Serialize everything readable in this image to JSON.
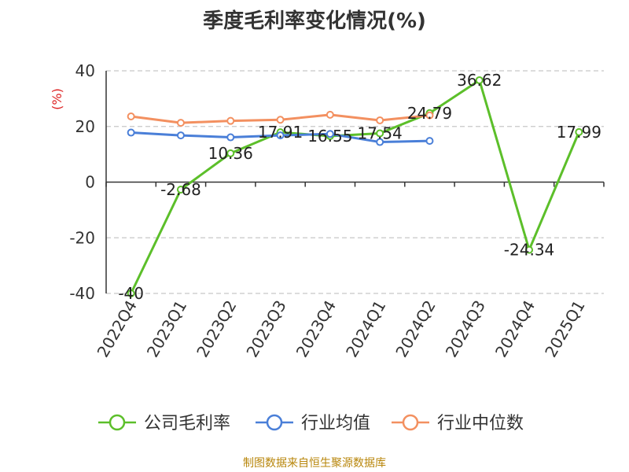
{
  "chart_data": {
    "type": "line",
    "title": "季度毛利率变化情况(%)",
    "ylabel": "(%)",
    "xlabel": "",
    "categories": [
      "2022Q4",
      "2023Q1",
      "2023Q2",
      "2023Q3",
      "2023Q4",
      "2024Q1",
      "2024Q2",
      "2024Q3",
      "2024Q4",
      "2025Q1"
    ],
    "ylim": [
      -40,
      40
    ],
    "yticks": [
      -40,
      -20,
      0,
      20,
      40
    ],
    "ytick_labels": [
      "-40",
      "-20",
      "0",
      "20",
      "40"
    ],
    "grid": "horizontal dashed",
    "legend_position": "bottom",
    "series": [
      {
        "name": "公司毛利率",
        "color": "#5cbf2a",
        "values": [
          -40,
          -2.68,
          10.36,
          17.91,
          16.55,
          17.54,
          24.79,
          36.62,
          -24.34,
          17.99
        ],
        "labels": [
          "-40",
          "-2.68",
          "10.36",
          "17.91",
          "16.55",
          "17.54",
          "24.79",
          "36.62",
          "-24.34",
          "17.99"
        ]
      },
      {
        "name": "行业均值",
        "color": "#4a7fd8",
        "values": [
          17.8,
          16.8,
          16.1,
          16.8,
          17.3,
          14.4,
          14.8,
          null,
          null,
          null
        ]
      },
      {
        "name": "行业中位数",
        "color": "#f39060",
        "values": [
          23.6,
          21.3,
          22.0,
          22.4,
          24.2,
          22.2,
          24.0,
          null,
          null,
          null
        ]
      }
    ]
  },
  "footer": {
    "source": "制图数据来自恒生聚源数据库"
  }
}
